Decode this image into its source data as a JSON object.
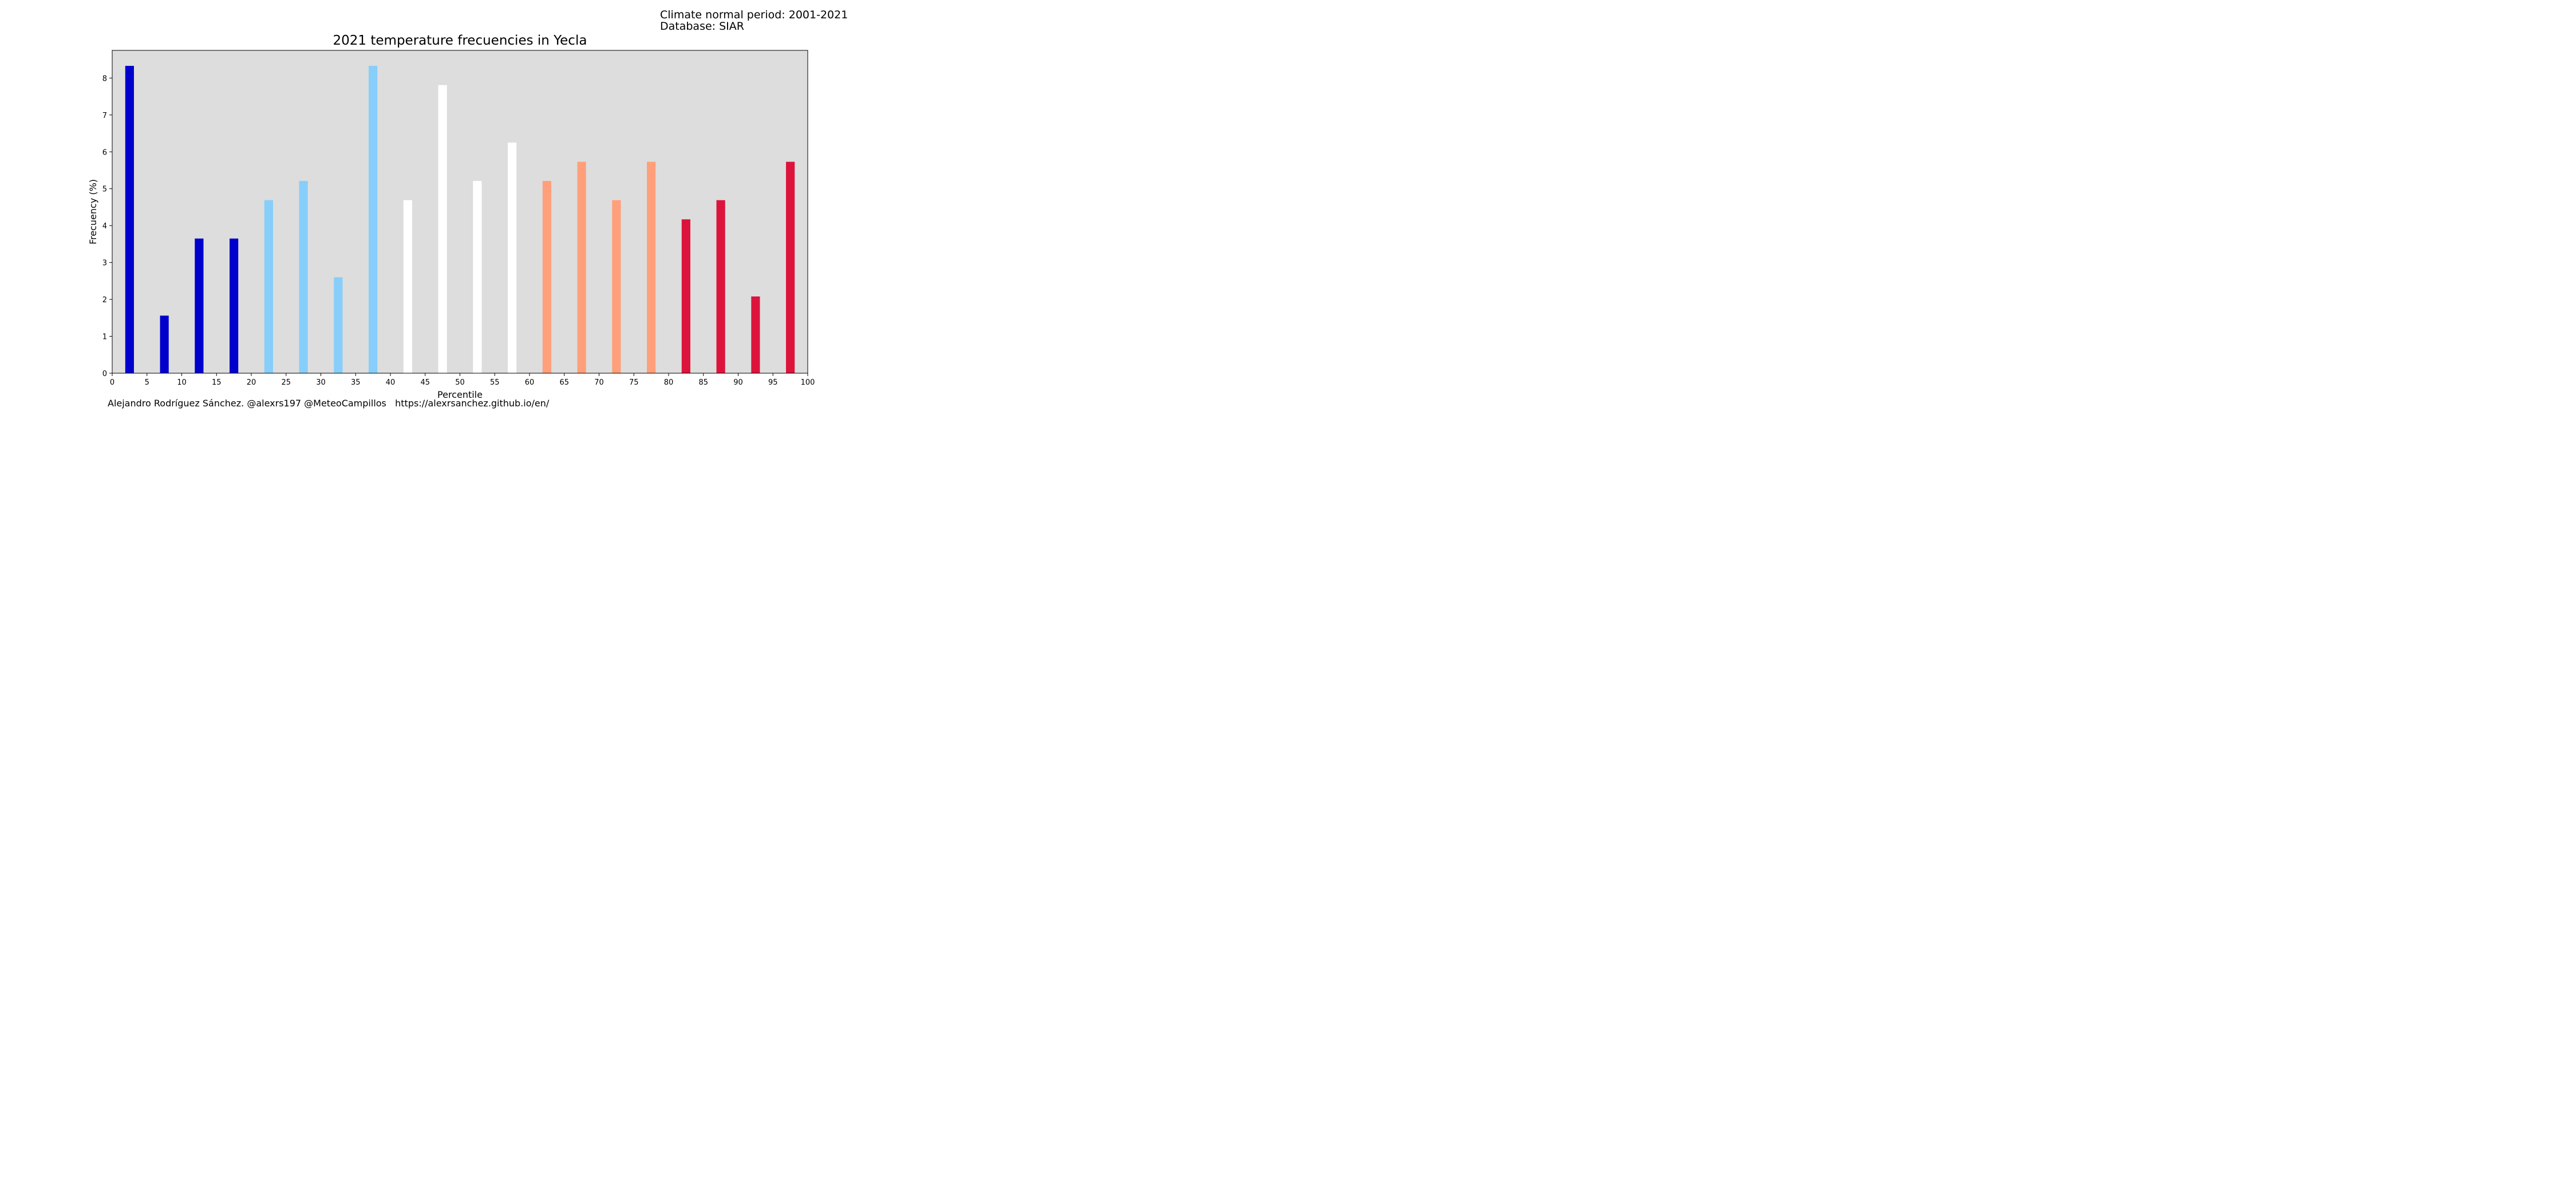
{
  "header": {
    "info_line1": "Climate normal period: 2001-2021",
    "info_line2": "Database: SIAR"
  },
  "footer": {
    "credit": "Alejandro Rodríguez Sánchez. @alexrs197 @MeteoCampillos   https://alexrsanchez.github.io/en/"
  },
  "chart_data": {
    "type": "bar",
    "title": "2021 temperature frecuencies in Yecla",
    "xlabel": "Percentile",
    "ylabel": "Frecuency (%)",
    "xlim": [
      0,
      100
    ],
    "ylim": [
      0,
      8.75
    ],
    "xticks": [
      0,
      5,
      10,
      15,
      20,
      25,
      30,
      35,
      40,
      45,
      50,
      55,
      60,
      65,
      70,
      75,
      80,
      85,
      90,
      95,
      100
    ],
    "yticks": [
      0,
      1,
      2,
      3,
      4,
      5,
      6,
      7,
      8
    ],
    "grid": false,
    "background_color": "#dddddd",
    "bar_width": 1.25,
    "x": [
      2.5,
      7.5,
      12.5,
      17.5,
      22.5,
      27.5,
      32.5,
      37.5,
      42.5,
      47.5,
      52.5,
      57.5,
      62.5,
      67.5,
      72.5,
      77.5,
      82.5,
      87.5,
      92.5,
      97.5
    ],
    "values": [
      8.33,
      1.56,
      3.65,
      3.65,
      4.69,
      5.21,
      2.6,
      8.33,
      4.69,
      7.81,
      5.21,
      6.25,
      5.21,
      5.73,
      4.69,
      5.73,
      4.17,
      4.69,
      2.08,
      5.73
    ],
    "colors": [
      "#0000cd",
      "#0000cd",
      "#0000cd",
      "#0000cd",
      "#87cefa",
      "#87cefa",
      "#87cefa",
      "#87cefa",
      "#ffffff",
      "#ffffff",
      "#ffffff",
      "#ffffff",
      "#ffa07a",
      "#ffa07a",
      "#ffa07a",
      "#ffa07a",
      "#dc143c",
      "#dc143c",
      "#dc143c",
      "#dc143c"
    ]
  }
}
